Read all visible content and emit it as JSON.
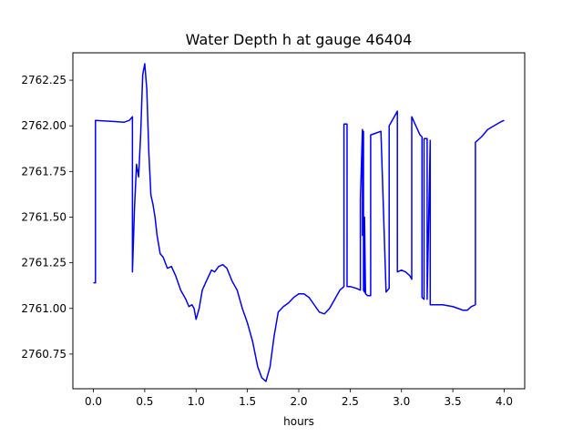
{
  "chart_data": {
    "type": "line",
    "title": "Water Depth h at gauge 46404",
    "xlabel": "hours",
    "ylabel": "",
    "xlim": [
      -0.2,
      4.2
    ],
    "ylim": [
      2760.56,
      2762.4
    ],
    "grid": false,
    "x_ticks": [
      0.0,
      0.5,
      1.0,
      1.5,
      2.0,
      2.5,
      3.0,
      3.5,
      4.0
    ],
    "x_tick_labels": [
      "0.0",
      "0.5",
      "1.0",
      "1.5",
      "2.0",
      "2.5",
      "3.0",
      "3.5",
      "4.0"
    ],
    "y_ticks": [
      2760.75,
      2761.0,
      2761.25,
      2761.5,
      2761.75,
      2762.0,
      2762.25
    ],
    "y_tick_labels": [
      "2760.75",
      "2761.00",
      "2761.25",
      "2761.50",
      "2761.75",
      "2762.00",
      "2762.25"
    ],
    "series": [
      {
        "color": "#0000ff",
        "x": [
          0.0,
          0.02,
          0.02,
          0.3,
          0.35,
          0.38,
          0.38,
          0.4,
          0.42,
          0.44,
          0.46,
          0.48,
          0.5,
          0.52,
          0.54,
          0.56,
          0.58,
          0.6,
          0.62,
          0.65,
          0.68,
          0.72,
          0.76,
          0.8,
          0.85,
          0.9,
          0.93,
          0.96,
          0.98,
          1.0,
          1.03,
          1.06,
          1.1,
          1.15,
          1.18,
          1.22,
          1.26,
          1.3,
          1.35,
          1.4,
          1.45,
          1.5,
          1.55,
          1.6,
          1.64,
          1.68,
          1.72,
          1.76,
          1.8,
          1.85,
          1.9,
          1.95,
          2.0,
          2.05,
          2.1,
          2.15,
          2.2,
          2.25,
          2.3,
          2.35,
          2.4,
          2.44,
          2.44,
          2.47,
          2.47,
          2.5,
          2.56,
          2.6,
          2.6,
          2.62,
          2.62,
          2.63,
          2.63,
          2.64,
          2.64,
          2.65,
          2.65,
          2.67,
          2.7,
          2.7,
          2.75,
          2.75,
          2.8,
          2.85,
          2.85,
          2.88,
          2.88,
          2.96,
          2.96,
          3.0,
          3.04,
          3.08,
          3.1,
          3.1,
          3.18,
          3.2,
          3.2,
          3.22,
          3.22,
          3.25,
          3.25,
          3.28,
          3.28,
          3.3,
          3.34,
          3.4,
          3.5,
          3.55,
          3.6,
          3.64,
          3.68,
          3.72,
          3.72,
          3.78,
          3.84,
          3.9,
          3.96,
          4.0
        ],
        "y": [
          2761.14,
          2761.14,
          2762.03,
          2762.02,
          2762.03,
          2762.05,
          2761.2,
          2761.55,
          2761.79,
          2761.72,
          2761.95,
          2762.28,
          2762.34,
          2762.2,
          2761.85,
          2761.62,
          2761.57,
          2761.5,
          2761.4,
          2761.3,
          2761.28,
          2761.22,
          2761.23,
          2761.18,
          2761.1,
          2761.05,
          2761.01,
          2761.02,
          2761.0,
          2760.94,
          2761.0,
          2761.1,
          2761.15,
          2761.21,
          2761.2,
          2761.23,
          2761.24,
          2761.22,
          2761.15,
          2761.1,
          2761.0,
          2760.92,
          2760.82,
          2760.68,
          2760.62,
          2760.6,
          2760.68,
          2760.85,
          2760.98,
          2761.01,
          2761.03,
          2761.06,
          2761.08,
          2761.08,
          2761.06,
          2761.02,
          2760.98,
          2760.97,
          2761.0,
          2761.05,
          2761.1,
          2761.12,
          2762.01,
          2762.01,
          2761.12,
          2761.12,
          2761.11,
          2761.1,
          2761.6,
          2761.98,
          2761.4,
          2761.97,
          2761.1,
          2761.09,
          2761.5,
          2761.08,
          2761.08,
          2761.07,
          2761.07,
          2761.95,
          2761.96,
          2761.96,
          2761.97,
          2761.09,
          2761.09,
          2761.11,
          2762.0,
          2762.08,
          2761.2,
          2761.21,
          2761.2,
          2761.18,
          2761.16,
          2762.05,
          2761.95,
          2761.94,
          2761.06,
          2761.05,
          2761.93,
          2761.93,
          2761.05,
          2761.92,
          2761.02,
          2761.02,
          2761.02,
          2761.02,
          2761.01,
          2761.0,
          2760.99,
          2760.99,
          2761.01,
          2761.02,
          2761.91,
          2761.94,
          2761.98,
          2762.0,
          2762.02,
          2762.03
        ]
      }
    ]
  }
}
